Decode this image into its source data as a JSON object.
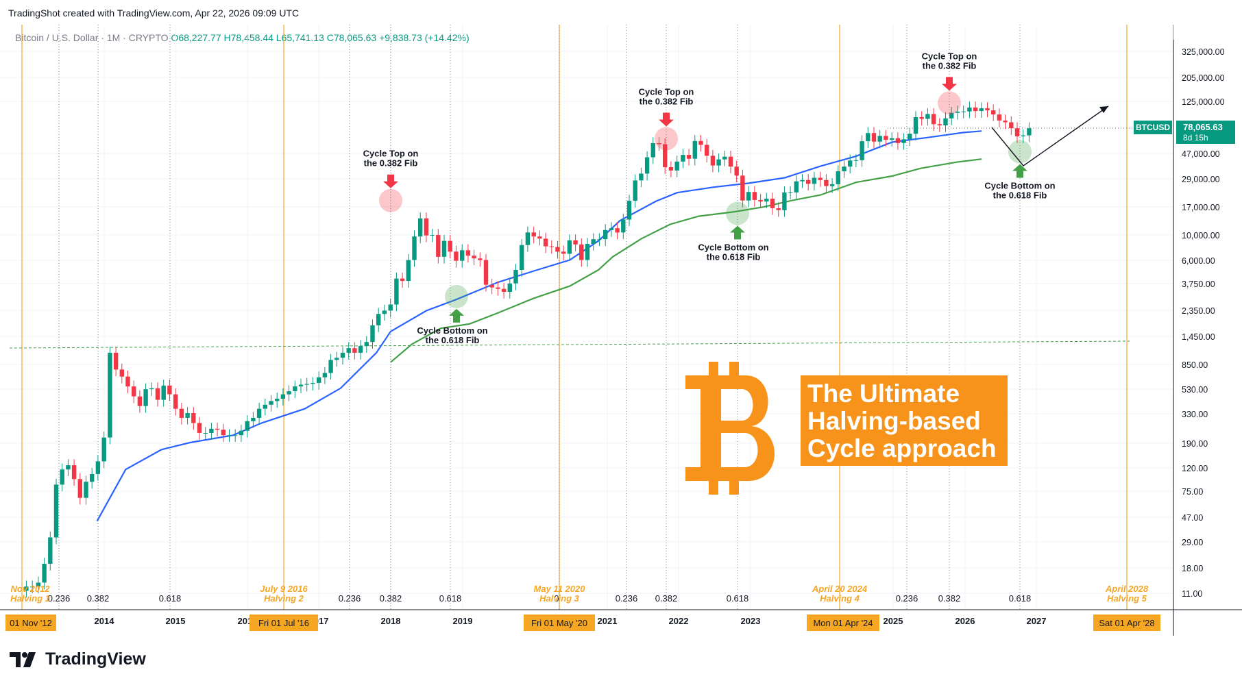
{
  "watermark": "TradingShot created with TradingView.com, Apr 22, 2026 09:09 UTC",
  "symbol_line": {
    "name": "Bitcoin / U.S. Dollar · 1M · CRYPTO",
    "open": "O68,227.77",
    "high": "H78,458.44",
    "low": "L65,741.13",
    "close": "C78,065.63",
    "change": "+9,838.73 (+14.42%)"
  },
  "currency": "USD",
  "brand": "TradingView",
  "price_tag": {
    "symbol": "BTCUSD",
    "price": "78,065.63",
    "countdown": "8d 15h"
  },
  "colors": {
    "up": "#089981",
    "down": "#f23645",
    "ma_fast": "#2962ff",
    "ma_slow": "#43a047",
    "halving": "#f5a623",
    "accent": "#ff9800"
  },
  "title_box": {
    "lines": [
      "The Ultimate",
      "Halving-based",
      "Cycle approach"
    ]
  },
  "annotations": {
    "top1": [
      "Cycle Top on",
      "the 0.382 Fib"
    ],
    "top2": [
      "Cycle Top on",
      "the 0.382 Fib"
    ],
    "top3": [
      "Cycle Top on",
      "the 0.382 Fib"
    ],
    "bottom1": [
      "Cycle Bottom on",
      "the 0.618 Fib"
    ],
    "bottom2": [
      "Cycle Bottom on",
      "the 0.618 Fib"
    ],
    "bottom3": [
      "Cycle Bottom on",
      "the 0.618 Fib"
    ]
  },
  "fib_labels": [
    "0.236",
    "0.382",
    "0.618",
    "0.236",
    "0.382",
    "0.618",
    "0",
    "0.236",
    "0.382",
    "0.618",
    "0.236",
    "0.382",
    "0.618"
  ],
  "chart_data": {
    "type": "candlestick",
    "scale": "log",
    "y_ticks": [
      "325,000.00",
      "205,000.00",
      "125,000.00",
      "47,000.00",
      "29,000.00",
      "17,000.00",
      "10,000.00",
      "6,000.00",
      "3,750.00",
      "2,350.00",
      "1,450.00",
      "850.00",
      "530.00",
      "330.00",
      "190.00",
      "120.00",
      "75.00",
      "47.00",
      "29.00",
      "18.00",
      "11.00"
    ],
    "x_ticks": [
      "2014",
      "2015",
      "2016",
      "2017",
      "2018",
      "2019",
      "2021",
      "2022",
      "2023",
      "2025",
      "2026",
      "2027"
    ],
    "halvings": [
      {
        "label": "Nov 2012",
        "name": "Halving 1",
        "date_tag": "01 Nov '12"
      },
      {
        "label": "July 9 2016",
        "name": "Halving 2",
        "date_tag": "Fri 01 Jul '16"
      },
      {
        "label": "May 11 2020",
        "name": "Halving 3",
        "date_tag": "Fri 01 May '20"
      },
      {
        "label": "April 20 2024",
        "name": "Halving 4",
        "date_tag": "Mon 01 Apr '24"
      },
      {
        "label": "April 2028",
        "name": "Halving 5",
        "date_tag": "Sat 01 Apr '28"
      }
    ],
    "last_price": 78065.63,
    "ohlc": {
      "open": 68227.77,
      "high": 78458.44,
      "low": 65741.13,
      "close": 78065.63
    },
    "cycle_tops": [
      19800,
      64000,
      126000
    ],
    "cycle_bottoms": [
      3200,
      15500,
      50000
    ],
    "grid": true
  }
}
